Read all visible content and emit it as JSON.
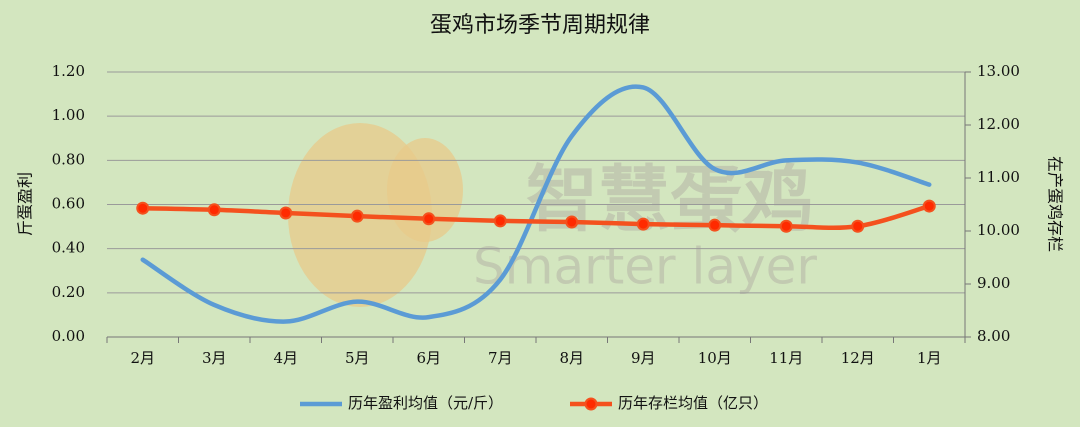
{
  "chart_data": {
    "type": "line",
    "title": "蛋鸡市场季节周期规律",
    "categories": [
      "2月",
      "3月",
      "4月",
      "5月",
      "6月",
      "7月",
      "8月",
      "9月",
      "10月",
      "11月",
      "12月",
      "1月"
    ],
    "series": [
      {
        "name": "历年盈利均值（元/斤）",
        "color": "#5b9bd5",
        "values": [
          0.35,
          0.145,
          0.07,
          0.16,
          0.09,
          0.26,
          0.91,
          1.13,
          0.76,
          0.8,
          0.79,
          0.69
        ]
      },
      {
        "name": "历年存栏均值（亿只）",
        "color": "#f4511e",
        "marker_color": "#ff2a00",
        "axis": "y2",
        "values": [
          10.43,
          10.4,
          10.34,
          10.28,
          10.23,
          10.19,
          10.17,
          10.13,
          10.11,
          10.09,
          10.09,
          10.47
        ]
      }
    ],
    "ylabel": "斤蛋盈利",
    "y2label": "在产蛋鸡存栏",
    "ylim": [
      0,
      1.2
    ],
    "yticks": [
      {
        "value": 0,
        "label": "0.00"
      },
      {
        "value": 0.2,
        "label": "0.20"
      },
      {
        "value": 0.4,
        "label": "0.40"
      },
      {
        "value": 0.6,
        "label": "0.60"
      },
      {
        "value": 0.8,
        "label": "0.80"
      },
      {
        "value": 1.0,
        "label": "1.00"
      },
      {
        "value": 1.2,
        "label": "1.20"
      }
    ],
    "y2lim": [
      8,
      13
    ],
    "y2ticks": [
      {
        "value": 8,
        "label": "8.00"
      },
      {
        "value": 9,
        "label": "9.00"
      },
      {
        "value": 10,
        "label": "10.00"
      },
      {
        "value": 11,
        "label": "11.00"
      },
      {
        "value": 12,
        "label": "12.00"
      },
      {
        "value": 13,
        "label": "13.00"
      }
    ],
    "grid": true,
    "watermark": [
      "智慧蛋鸡",
      "Smarter layer"
    ]
  }
}
